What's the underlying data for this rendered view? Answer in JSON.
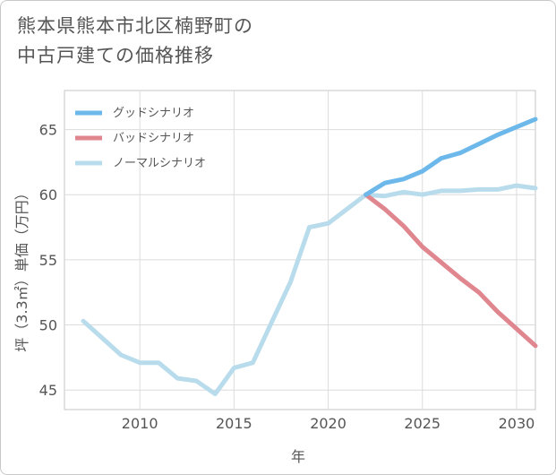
{
  "title_lines": [
    "熊本県熊本市北区楠野町の",
    "中古戸建ての価格推移"
  ],
  "chart_data": {
    "type": "line",
    "xlabel": "年",
    "ylabel": "坪（3.3㎡）単価（万円）",
    "xlim": [
      2006,
      2031
    ],
    "ylim": [
      43.5,
      68
    ],
    "xticks": [
      2010,
      2015,
      2020,
      2025,
      2030
    ],
    "yticks": [
      45,
      50,
      55,
      60,
      65
    ],
    "grid": true,
    "legend_position": "top-left",
    "series": [
      {
        "name": "グッドシナリオ",
        "color": "#6cb8ea",
        "x": [
          2022,
          2023,
          2024,
          2025,
          2026,
          2027,
          2028,
          2029,
          2030,
          2031
        ],
        "y": [
          60.0,
          60.9,
          61.2,
          61.8,
          62.8,
          63.2,
          63.9,
          64.6,
          65.2,
          65.8
        ]
      },
      {
        "name": "バッドシナリオ",
        "color": "#e0868f",
        "x": [
          2022,
          2023,
          2024,
          2025,
          2026,
          2027,
          2028,
          2029,
          2030,
          2031
        ],
        "y": [
          60.0,
          58.9,
          57.6,
          56.0,
          54.8,
          53.6,
          52.5,
          51.0,
          49.7,
          48.4
        ]
      },
      {
        "name": "ノーマルシナリオ",
        "color": "#b8dcec",
        "x": [
          2007,
          2008,
          2009,
          2010,
          2011,
          2012,
          2013,
          2014,
          2015,
          2016,
          2017,
          2018,
          2019,
          2020,
          2021,
          2022,
          2023,
          2024,
          2025,
          2026,
          2027,
          2028,
          2029,
          2030,
          2031
        ],
        "y": [
          50.3,
          49.0,
          47.7,
          47.1,
          47.1,
          45.9,
          45.7,
          44.7,
          46.7,
          47.1,
          50.2,
          53.3,
          57.5,
          57.8,
          58.9,
          60.0,
          59.9,
          60.2,
          60.0,
          60.3,
          60.3,
          60.4,
          60.4,
          60.7,
          60.5
        ]
      }
    ]
  }
}
